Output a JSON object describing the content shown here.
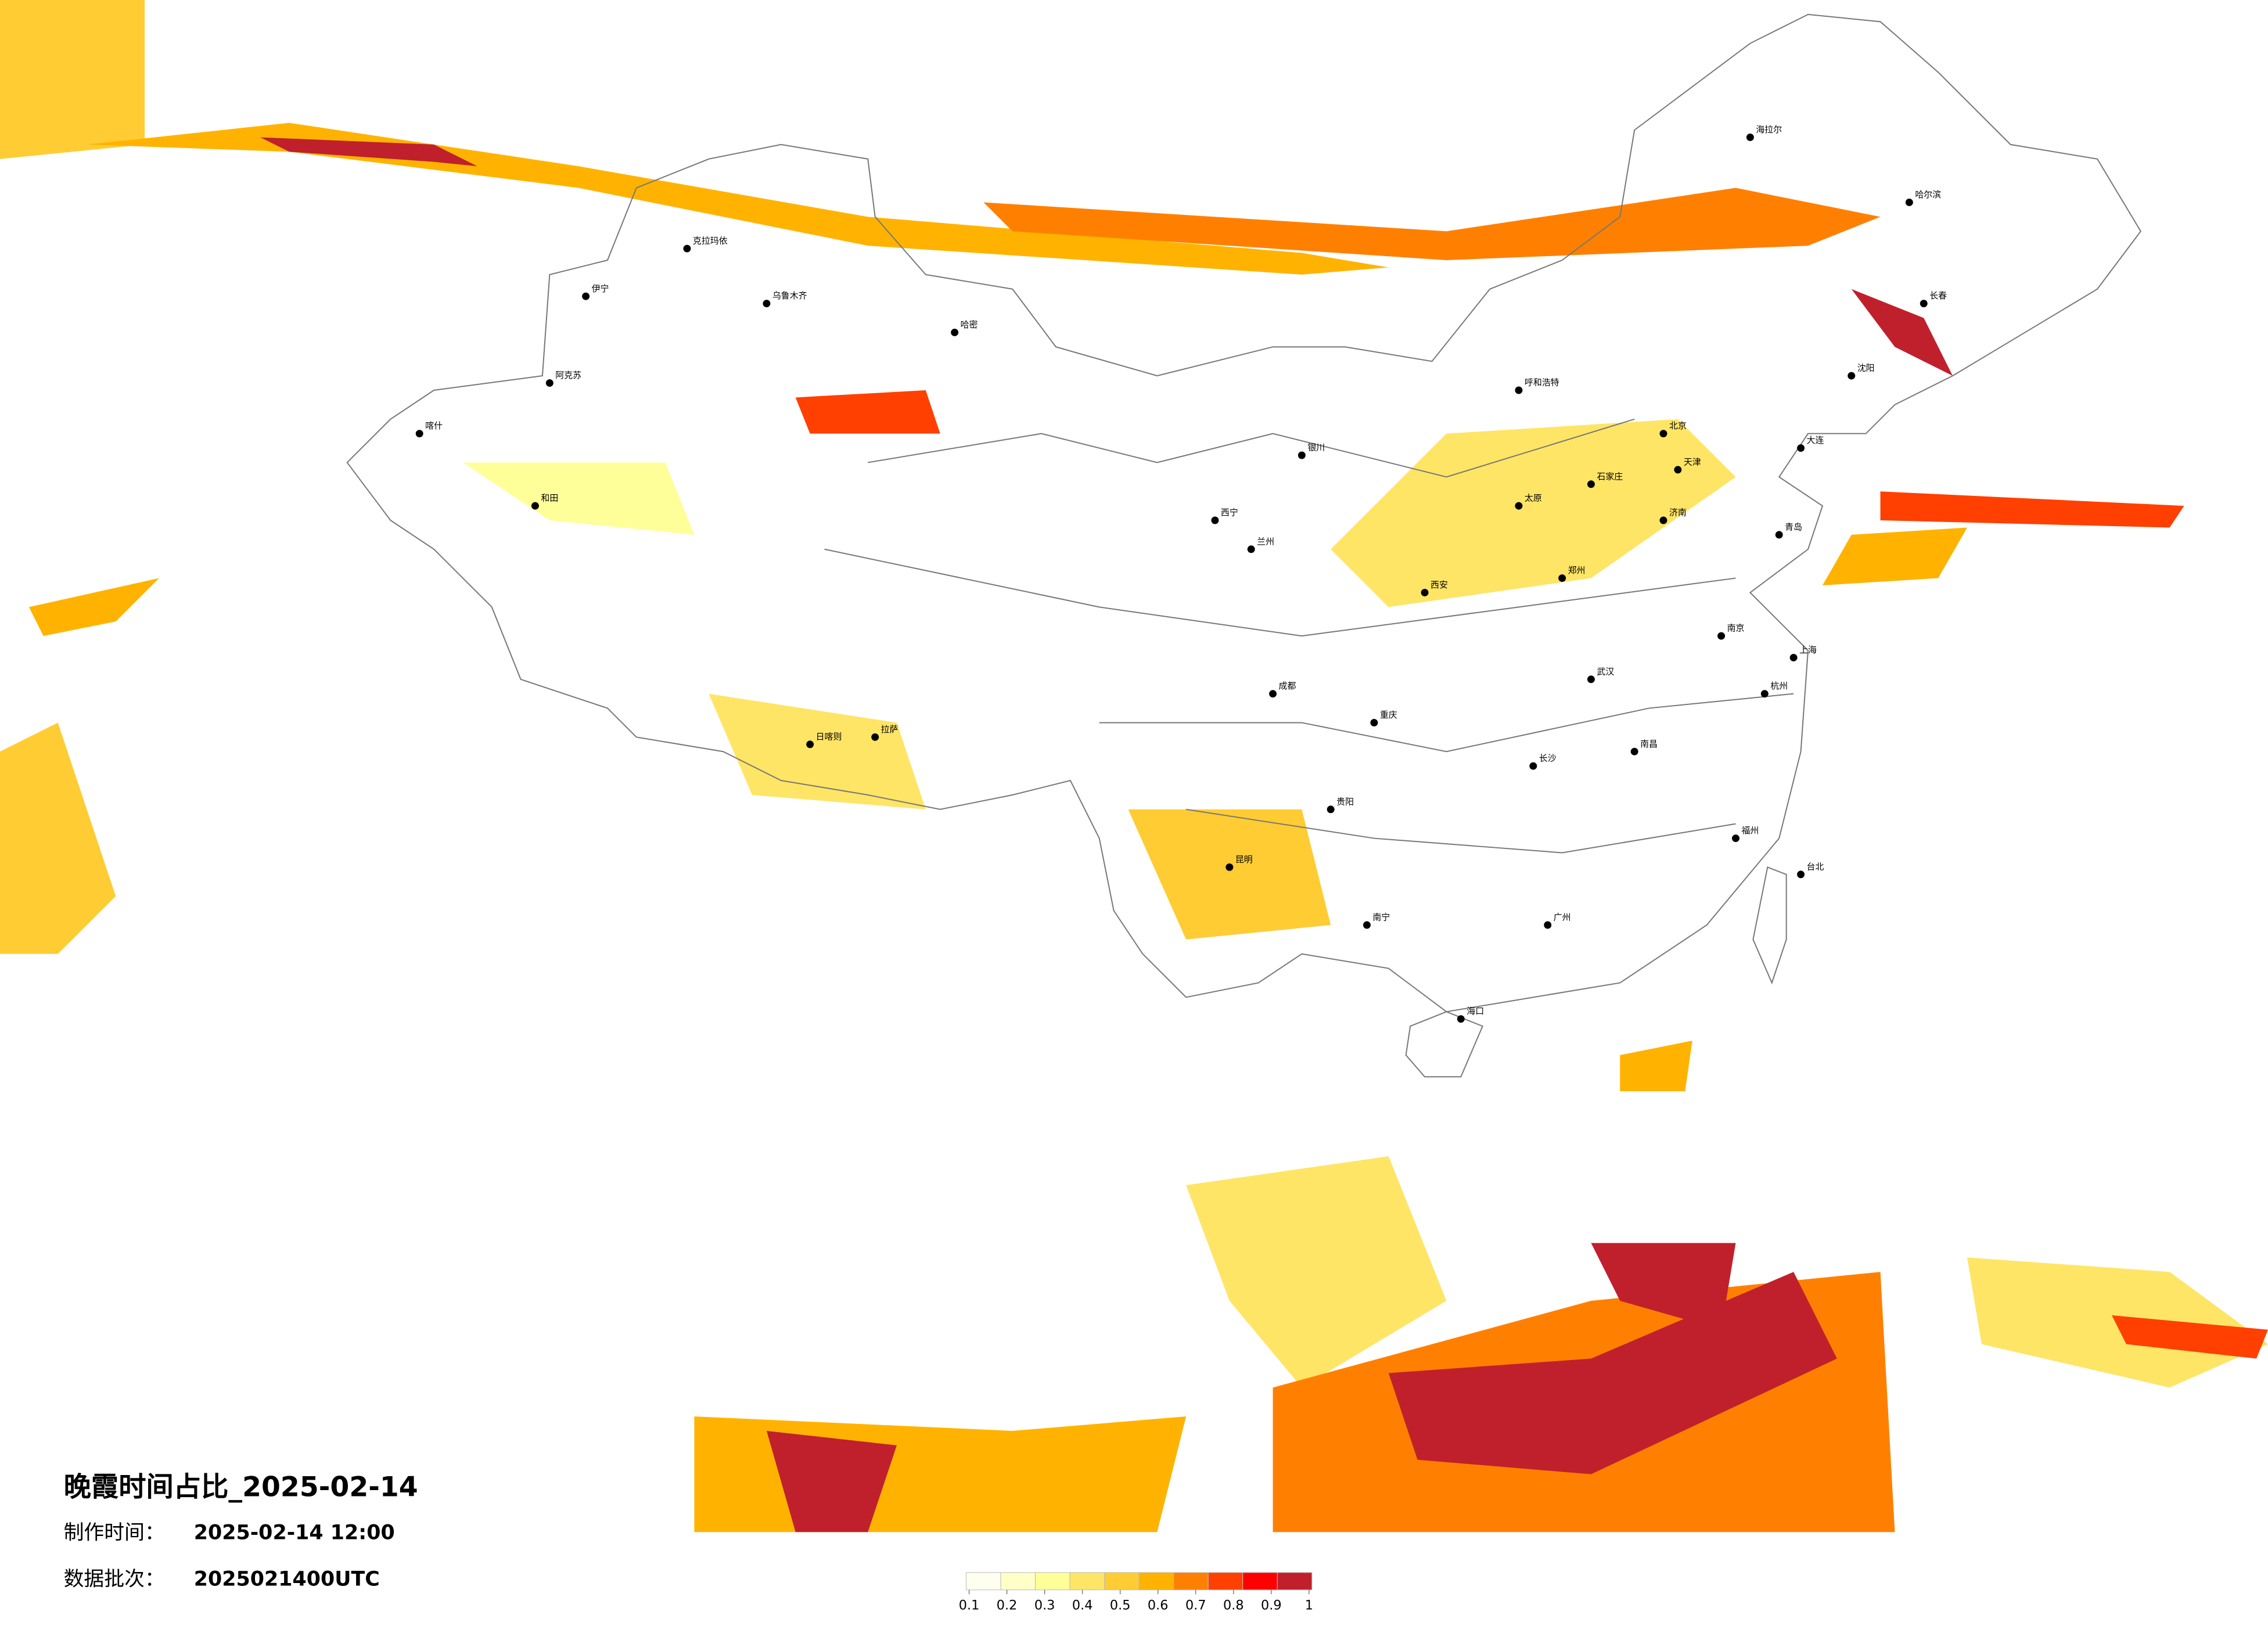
{
  "header": {
    "title": "晚霞时间占比_2025-02-14",
    "made_label": "制作时间：",
    "made_value": "2025-02-14 12:00",
    "batch_label": "数据批次：",
    "batch_value": "2025021400UTC"
  },
  "colorbar": {
    "colors": [
      "#fffff0",
      "#ffffc8",
      "#ffff99",
      "#ffe566",
      "#ffcc33",
      "#ffb300",
      "#ff8000",
      "#ff4000",
      "#ff0000",
      "#c0202c"
    ],
    "ticks": [
      0.1,
      0.2,
      0.3,
      0.4,
      0.5,
      0.6,
      0.7,
      0.8,
      0.9,
      1
    ]
  },
  "cities": [
    "乌鲁木齐",
    "伊宁",
    "阿克苏",
    "喀什",
    "和田",
    "哈密",
    "克拉玛依",
    "拉萨",
    "日喀则",
    "西宁",
    "兰州",
    "银川",
    "呼和浩特",
    "北京",
    "天津",
    "石家庄",
    "太原",
    "济南",
    "青岛",
    "郑州",
    "西安",
    "成都",
    "重庆",
    "武汉",
    "南京",
    "上海",
    "杭州",
    "长沙",
    "南昌",
    "福州",
    "贵阳",
    "昆明",
    "南宁",
    "广州",
    "海口",
    "台北",
    "哈尔滨",
    "长春",
    "沈阳",
    "大连",
    "海拉尔"
  ]
}
